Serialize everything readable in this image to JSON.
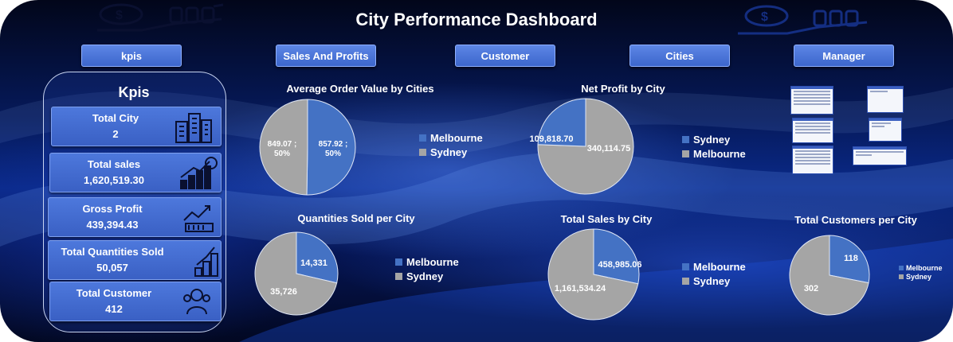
{
  "header": {
    "title": "City Performance Dashboard"
  },
  "nav": [
    {
      "label": "kpis"
    },
    {
      "label": "Sales And Profits"
    },
    {
      "label": "Customer"
    },
    {
      "label": "Cities"
    },
    {
      "label": "Manager"
    }
  ],
  "kpis": {
    "heading": "Kpis",
    "cards": [
      {
        "label": "Total City",
        "value": "2",
        "icon": "buildings-icon"
      },
      {
        "label": "Total sales",
        "value": "1,620,519.30",
        "icon": "sales-growth-icon"
      },
      {
        "label": "Gross Profit",
        "value": "439,394.43",
        "icon": "profit-chart-icon"
      },
      {
        "label": "Total Quantities Sold",
        "value": "50,057",
        "icon": "stacked-coins-icon"
      },
      {
        "label": "Total Customer",
        "value": "412",
        "icon": "customers-icon"
      }
    ]
  },
  "colors": {
    "Melbourne": "#4472c4",
    "Sydney": "#a5a5a5"
  },
  "chart_data": [
    {
      "type": "pie",
      "title": "Average Order Value by Cities",
      "categories": [
        "Melbourne",
        "Sydney"
      ],
      "values": [
        857.92,
        849.07
      ],
      "data_labels": [
        "857.92 ; 50%",
        "849.07 ; 50%"
      ],
      "legend": [
        "Melbourne",
        "Sydney"
      ],
      "legend_position": "right"
    },
    {
      "type": "pie",
      "title": "Net Profit by City",
      "categories": [
        "Sydney",
        "Melbourne"
      ],
      "values": [
        340114.75,
        109818.7
      ],
      "data_labels": [
        "340,114.75",
        "109,818.70"
      ],
      "legend": [
        "Sydney",
        "Melbourne"
      ],
      "legend_position": "right"
    },
    {
      "type": "pie",
      "title": "Quantities Sold per City",
      "categories": [
        "Melbourne",
        "Sydney"
      ],
      "values": [
        14331,
        35726
      ],
      "data_labels": [
        "14,331",
        "35,726"
      ],
      "legend": [
        "Melbourne",
        "Sydney"
      ],
      "legend_position": "right"
    },
    {
      "type": "pie",
      "title": "Total Sales by City",
      "categories": [
        "Melbourne",
        "Sydney"
      ],
      "values": [
        458985.06,
        1161534.24
      ],
      "data_labels": [
        "458,985.06",
        "1,161,534.24"
      ],
      "legend": [
        "Melbourne",
        "Sydney"
      ],
      "legend_position": "right"
    },
    {
      "type": "pie",
      "title": "Total Customers per City",
      "categories": [
        "Melbourne",
        "Sydney"
      ],
      "values": [
        118,
        302
      ],
      "data_labels": [
        "118",
        "302"
      ],
      "legend": [
        "Melbourne",
        "Sydney"
      ],
      "legend_position": "right"
    }
  ],
  "decorations": {
    "top_left": "money-hand-icon",
    "top_right": "money-hand-icon",
    "manager_thumbnails": "form-screenshots"
  }
}
